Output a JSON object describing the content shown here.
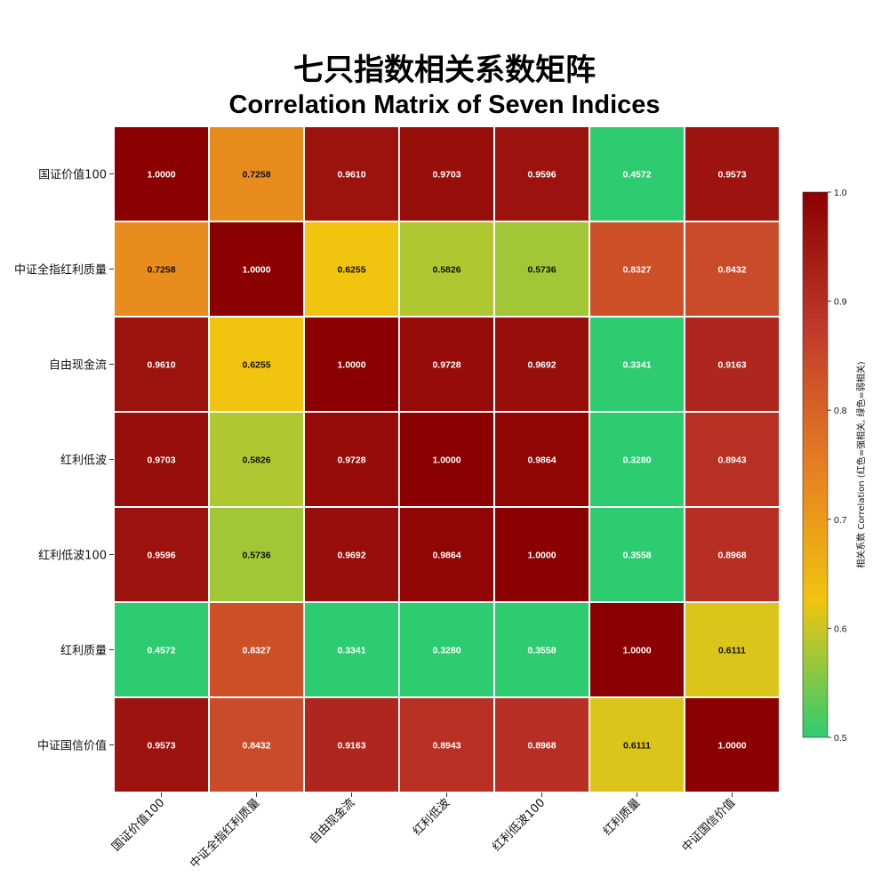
{
  "chart_data": {
    "type": "heatmap",
    "title": "七只指数相关系数矩阵",
    "subtitle": "Correlation Matrix of Seven Indices",
    "row_labels": [
      "国证价值100",
      "中证全指红利质量",
      "自由现金流",
      "红利低波",
      "红利低波100",
      "红利质量",
      "中证国信价值"
    ],
    "col_labels": [
      "国证价值100",
      "中证全指红利质量",
      "自由现金流",
      "红利低波",
      "红利低波100",
      "红利质量",
      "中证国信价值"
    ],
    "values": [
      [
        1.0,
        0.7258,
        0.961,
        0.9703,
        0.9596,
        0.4572,
        0.9573
      ],
      [
        0.7258,
        1.0,
        0.6255,
        0.5826,
        0.5736,
        0.8327,
        0.8432
      ],
      [
        0.961,
        0.6255,
        1.0,
        0.9728,
        0.9692,
        0.3341,
        0.9163
      ],
      [
        0.9703,
        0.5826,
        0.9728,
        1.0,
        0.9864,
        0.328,
        0.8943
      ],
      [
        0.9596,
        0.5736,
        0.9692,
        0.9864,
        1.0,
        0.3558,
        0.8968
      ],
      [
        0.4572,
        0.8327,
        0.3341,
        0.328,
        0.3558,
        1.0,
        0.6111
      ],
      [
        0.9573,
        0.8432,
        0.9163,
        0.8943,
        0.8968,
        0.6111,
        1.0
      ]
    ],
    "value_format_decimals": 4,
    "colorbar": {
      "label": "相关系数 Correlation (红色=强相关, 绿色=弱相关)",
      "vmin": 0.5,
      "vmax": 1.0,
      "ticks": [
        0.5,
        0.6,
        0.7,
        0.8,
        0.9,
        1.0
      ],
      "tick_labels": [
        "0.5",
        "0.6",
        "0.7",
        "0.8",
        "0.9",
        "1.0"
      ],
      "colormap": [
        [
          0.0,
          "#2ecc71"
        ],
        [
          0.25,
          "#f1c40f"
        ],
        [
          0.5,
          "#e67e22"
        ],
        [
          0.75,
          "#c0392b"
        ],
        [
          1.0,
          "#8b0000"
        ]
      ],
      "position": "right"
    },
    "grid": false,
    "cell_border_color": "#ffffff"
  }
}
